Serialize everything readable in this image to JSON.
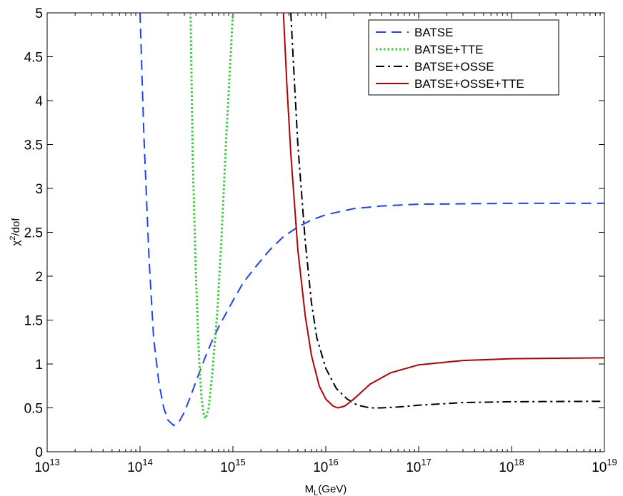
{
  "chart_data": {
    "type": "line",
    "xlabel": {
      "main": "M",
      "sub": "L",
      "rest": "(GeV)"
    },
    "ylabel": {
      "main": "χ",
      "sup": "2",
      "rest": "/dof"
    },
    "xscale": "log",
    "xlim": [
      10000000000000.0,
      1e+19
    ],
    "ylim": [
      0,
      5
    ],
    "xticks": [
      {
        "base": "10",
        "exp": "13"
      },
      {
        "base": "10",
        "exp": "14"
      },
      {
        "base": "10",
        "exp": "15"
      },
      {
        "base": "10",
        "exp": "16"
      },
      {
        "base": "10",
        "exp": "17"
      },
      {
        "base": "10",
        "exp": "18"
      },
      {
        "base": "10",
        "exp": "19"
      }
    ],
    "yticks": [
      "0",
      "0.5",
      "1",
      "1.5",
      "2",
      "2.5",
      "3",
      "3.5",
      "4",
      "4.5",
      "5"
    ],
    "grid": false,
    "legend_position": "top-right",
    "series": [
      {
        "name": "BATSE",
        "color": "#1f3fff",
        "style": "dashed",
        "points": [
          [
            100000000000000.0,
            5.0
          ],
          [
            110000000000000.0,
            3.6
          ],
          [
            125000000000000.0,
            2.2
          ],
          [
            140000000000000.0,
            1.3
          ],
          [
            160000000000000.0,
            0.78
          ],
          [
            180000000000000.0,
            0.5
          ],
          [
            200000000000000.0,
            0.36
          ],
          [
            230000000000000.0,
            0.3
          ],
          [
            260000000000000.0,
            0.33
          ],
          [
            300000000000000.0,
            0.45
          ],
          [
            350000000000000.0,
            0.63
          ],
          [
            400000000000000.0,
            0.8
          ],
          [
            500000000000000.0,
            1.07
          ],
          [
            600000000000000.0,
            1.27
          ],
          [
            700000000000000.0,
            1.42
          ],
          [
            1000000000000000.0,
            1.72
          ],
          [
            1300000000000000.0,
            1.93
          ],
          [
            1800000000000000.0,
            2.12
          ],
          [
            2500000000000000.0,
            2.3
          ],
          [
            3500000000000000.0,
            2.45
          ],
          [
            5000000000000000.0,
            2.56
          ],
          [
            7000000000000000.0,
            2.64
          ],
          [
            1e+16,
            2.7
          ],
          [
            2e+16,
            2.77
          ],
          [
            4e+16,
            2.8
          ],
          [
            1e+17,
            2.82
          ],
          [
            1e+18,
            2.83
          ],
          [
            1e+19,
            2.83
          ]
        ]
      },
      {
        "name": "BATSE+TTE",
        "color": "#33cc33",
        "style": "dotted",
        "points": [
          [
            350000000000000.0,
            5.0
          ],
          [
            370000000000000.0,
            3.3
          ],
          [
            400000000000000.0,
            2.0
          ],
          [
            430000000000000.0,
            1.1
          ],
          [
            460000000000000.0,
            0.6
          ],
          [
            490000000000000.0,
            0.4
          ],
          [
            510000000000000.0,
            0.38
          ],
          [
            550000000000000.0,
            0.5
          ],
          [
            600000000000000.0,
            0.9
          ],
          [
            680000000000000.0,
            1.6
          ],
          [
            750000000000000.0,
            2.4
          ],
          [
            850000000000000.0,
            3.6
          ],
          [
            1000000000000000.0,
            5.0
          ]
        ]
      },
      {
        "name": "BATSE+OSSE",
        "color": "#000000",
        "style": "dashdot",
        "points": [
          [
            4200000000000000.0,
            5.0
          ],
          [
            4600000000000000.0,
            4.2
          ],
          [
            5000000000000000.0,
            3.5
          ],
          [
            6000000000000000.0,
            2.4
          ],
          [
            7000000000000000.0,
            1.7
          ],
          [
            8000000000000000.0,
            1.3
          ],
          [
            1e+16,
            0.95
          ],
          [
            1.3e+16,
            0.72
          ],
          [
            1.7e+16,
            0.6
          ],
          [
            2.2e+16,
            0.53
          ],
          [
            3e+16,
            0.5
          ],
          [
            4e+16,
            0.5
          ],
          [
            6e+16,
            0.51
          ],
          [
            1e+17,
            0.53
          ],
          [
            3e+17,
            0.56
          ],
          [
            1e+18,
            0.57
          ],
          [
            1e+19,
            0.575
          ]
        ]
      },
      {
        "name": "BATSE+OSSE+TTE",
        "color": "#b30000",
        "style": "solid",
        "points": [
          [
            3500000000000000.0,
            5.0
          ],
          [
            3800000000000000.0,
            4.2
          ],
          [
            4200000000000000.0,
            3.4
          ],
          [
            5000000000000000.0,
            2.3
          ],
          [
            6000000000000000.0,
            1.55
          ],
          [
            7000000000000000.0,
            1.1
          ],
          [
            8500000000000000.0,
            0.75
          ],
          [
            1e+16,
            0.6
          ],
          [
            1.2e+16,
            0.52
          ],
          [
            1.35e+16,
            0.5
          ],
          [
            1.6e+16,
            0.52
          ],
          [
            2e+16,
            0.6
          ],
          [
            3e+16,
            0.77
          ],
          [
            5e+16,
            0.9
          ],
          [
            1e+17,
            0.99
          ],
          [
            3e+17,
            1.04
          ],
          [
            1e+18,
            1.06
          ],
          [
            1e+19,
            1.07
          ]
        ]
      }
    ]
  }
}
